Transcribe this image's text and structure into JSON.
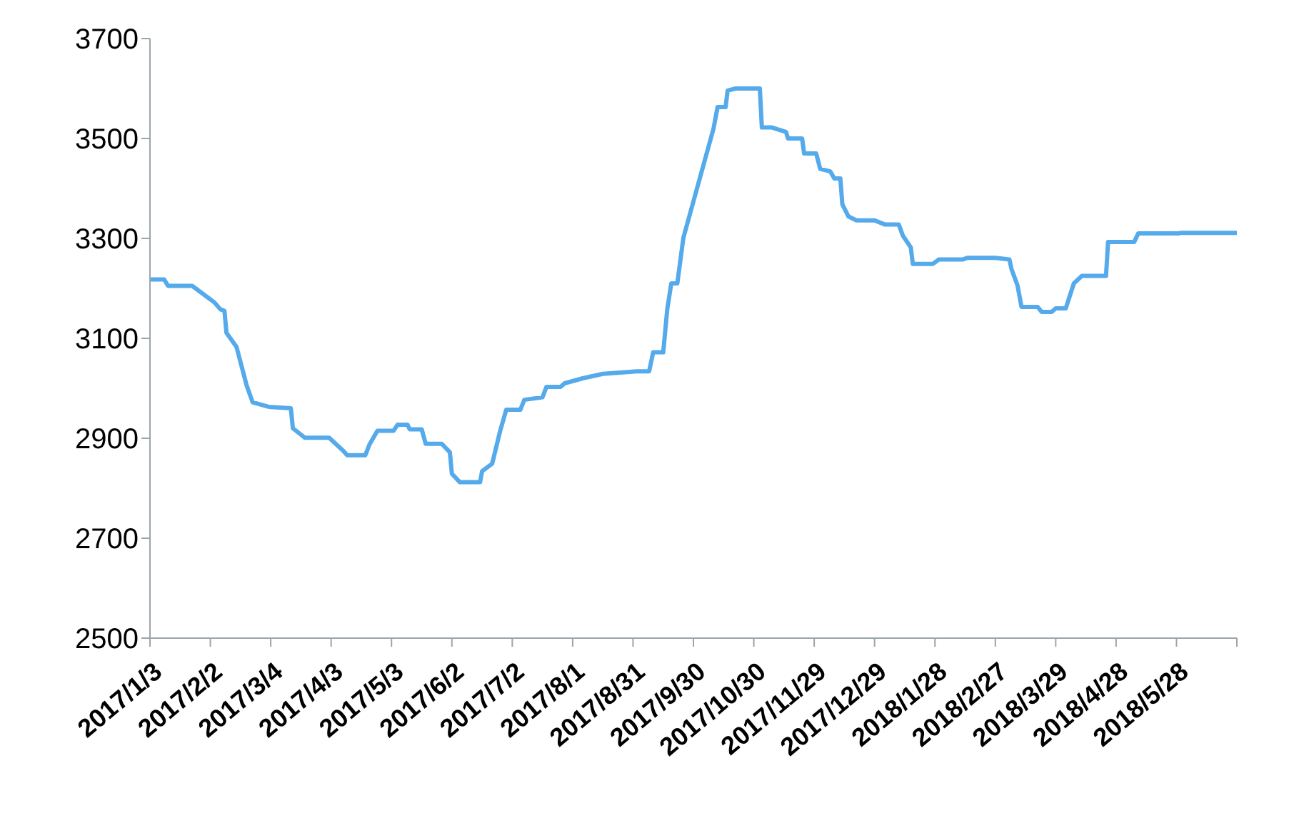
{
  "chart_data": {
    "type": "line",
    "x": [
      "2017-01-03",
      "2017-01-10",
      "2017-01-12",
      "2017-01-24",
      "2017-02-04",
      "2017-02-07",
      "2017-02-09",
      "2017-02-10",
      "2017-02-15",
      "2017-02-20",
      "2017-02-23",
      "2017-03-03",
      "2017-03-14",
      "2017-03-15",
      "2017-03-21",
      "2017-04-02",
      "2017-04-09",
      "2017-04-11",
      "2017-04-20",
      "2017-04-22",
      "2017-04-26",
      "2017-05-04",
      "2017-05-06",
      "2017-05-11",
      "2017-05-12",
      "2017-05-18",
      "2017-05-20",
      "2017-05-28",
      "2017-06-01",
      "2017-06-02",
      "2017-06-06",
      "2017-06-16",
      "2017-06-17",
      "2017-06-22",
      "2017-06-26",
      "2017-06-29",
      "2017-07-06",
      "2017-07-08",
      "2017-07-17",
      "2017-07-19",
      "2017-07-26",
      "2017-07-28",
      "2017-08-06",
      "2017-08-16",
      "2017-09-02",
      "2017-09-08",
      "2017-09-10",
      "2017-09-15",
      "2017-09-17",
      "2017-09-19",
      "2017-09-22",
      "2017-09-25",
      "2017-10-10",
      "2017-10-12",
      "2017-10-16",
      "2017-10-17",
      "2017-10-21",
      "2017-11-02",
      "2017-11-03",
      "2017-11-08",
      "2017-11-15",
      "2017-11-16",
      "2017-11-23",
      "2017-11-24",
      "2017-11-30",
      "2017-12-02",
      "2017-12-07",
      "2017-12-09",
      "2017-12-12",
      "2017-12-13",
      "2017-12-16",
      "2017-12-20",
      "2017-12-29",
      "2018-01-03",
      "2018-01-10",
      "2018-01-12",
      "2018-01-16",
      "2018-01-17",
      "2018-01-27",
      "2018-01-30",
      "2018-02-11",
      "2018-02-13",
      "2018-02-27",
      "2018-03-06",
      "2018-03-07",
      "2018-03-10",
      "2018-03-12",
      "2018-03-20",
      "2018-03-22",
      "2018-03-27",
      "2018-03-29",
      "2018-04-03",
      "2018-04-07",
      "2018-04-11",
      "2018-04-23",
      "2018-04-24",
      "2018-05-07",
      "2018-05-09",
      "2018-05-29",
      "2018-05-30",
      "2018-06-27"
    ],
    "series": [
      {
        "color": "#55aaeb",
        "values": [
          3218,
          3218,
          3205,
          3205,
          3172,
          3158,
          3155,
          3111,
          3083,
          3006,
          2972,
          2963,
          2960,
          2920,
          2901,
          2901,
          2875,
          2866,
          2866,
          2887,
          2915,
          2915,
          2927,
          2927,
          2918,
          2918,
          2889,
          2889,
          2872,
          2829,
          2812,
          2812,
          2834,
          2849,
          2915,
          2957,
          2957,
          2977,
          2982,
          3003,
          3003,
          3010,
          3020,
          3029,
          3034,
          3034,
          3072,
          3072,
          3158,
          3210,
          3210,
          3301,
          3520,
          3563,
          3563,
          3596,
          3600,
          3600,
          3522,
          3522,
          3513,
          3500,
          3500,
          3470,
          3470,
          3439,
          3434,
          3420,
          3420,
          3368,
          3344,
          3336,
          3336,
          3328,
          3328,
          3306,
          3282,
          3249,
          3249,
          3258,
          3258,
          3261,
          3261,
          3258,
          3239,
          3206,
          3163,
          3163,
          3153,
          3153,
          3160,
          3160,
          3210,
          3225,
          3225,
          3293,
          3293,
          3310,
          3310,
          3311,
          3311
        ]
      }
    ],
    "xlim": [
      "2017-01-03",
      "2018-06-27"
    ],
    "xticks": [
      {
        "value": "2017-01-03",
        "label": "2017/1/3"
      },
      {
        "value": "2017-02-02",
        "label": "2017/2/2"
      },
      {
        "value": "2017-03-04",
        "label": "2017/3/4"
      },
      {
        "value": "2017-04-03",
        "label": "2017/4/3"
      },
      {
        "value": "2017-05-03",
        "label": "2017/5/3"
      },
      {
        "value": "2017-06-02",
        "label": "2017/6/2"
      },
      {
        "value": "2017-07-02",
        "label": "2017/7/2"
      },
      {
        "value": "2017-08-01",
        "label": "2017/8/1"
      },
      {
        "value": "2017-08-31",
        "label": "2017/8/31"
      },
      {
        "value": "2017-09-30",
        "label": "2017/9/30"
      },
      {
        "value": "2017-10-30",
        "label": "2017/10/30"
      },
      {
        "value": "2017-11-29",
        "label": "2017/11/29"
      },
      {
        "value": "2017-12-29",
        "label": "2017/12/29"
      },
      {
        "value": "2018-01-28",
        "label": "2018/1/28"
      },
      {
        "value": "2018-02-27",
        "label": "2018/2/27"
      },
      {
        "value": "2018-03-29",
        "label": "2018/3/29"
      },
      {
        "value": "2018-04-28",
        "label": "2018/4/28"
      },
      {
        "value": "2018-05-28",
        "label": "2018/5/28"
      },
      {
        "value": "2018-06-27",
        "label": null
      }
    ],
    "ylim": [
      2500,
      3700
    ],
    "yticks": [
      2500,
      2700,
      2900,
      3100,
      3300,
      3500,
      3700
    ]
  }
}
